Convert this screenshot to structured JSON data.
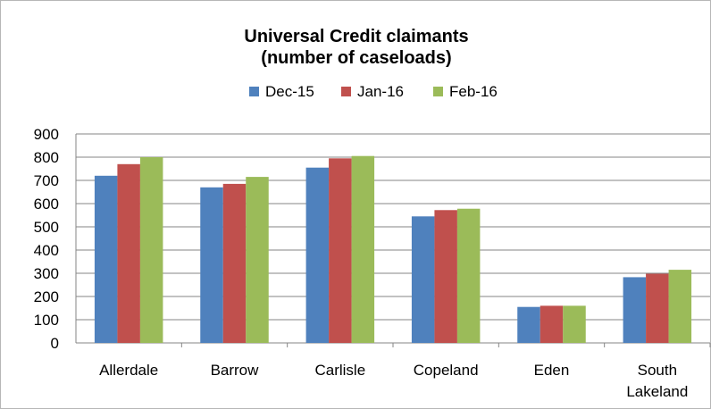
{
  "chart_data": {
    "type": "bar",
    "title_lines": [
      "Universal Credit claimants",
      "(number of caseloads)"
    ],
    "categories": [
      [
        "Allerdale"
      ],
      [
        "Barrow"
      ],
      [
        "Carlisle"
      ],
      [
        "Copeland"
      ],
      [
        "Eden"
      ],
      [
        "South",
        "Lakeland"
      ]
    ],
    "series": [
      {
        "name": "Dec-15",
        "color": "#4f81bd",
        "values": [
          720,
          670,
          755,
          545,
          155,
          283
        ]
      },
      {
        "name": "Jan-16",
        "color": "#c0504d",
        "values": [
          770,
          685,
          795,
          572,
          160,
          298
        ]
      },
      {
        "name": "Feb-16",
        "color": "#9bbb59",
        "values": [
          800,
          715,
          805,
          578,
          160,
          315
        ]
      }
    ],
    "ylim": [
      0,
      900
    ],
    "yticks": [
      "0",
      "100",
      "200",
      "300",
      "400",
      "500",
      "600",
      "700",
      "800",
      "900"
    ],
    "grid": true,
    "legend_position": "top"
  }
}
